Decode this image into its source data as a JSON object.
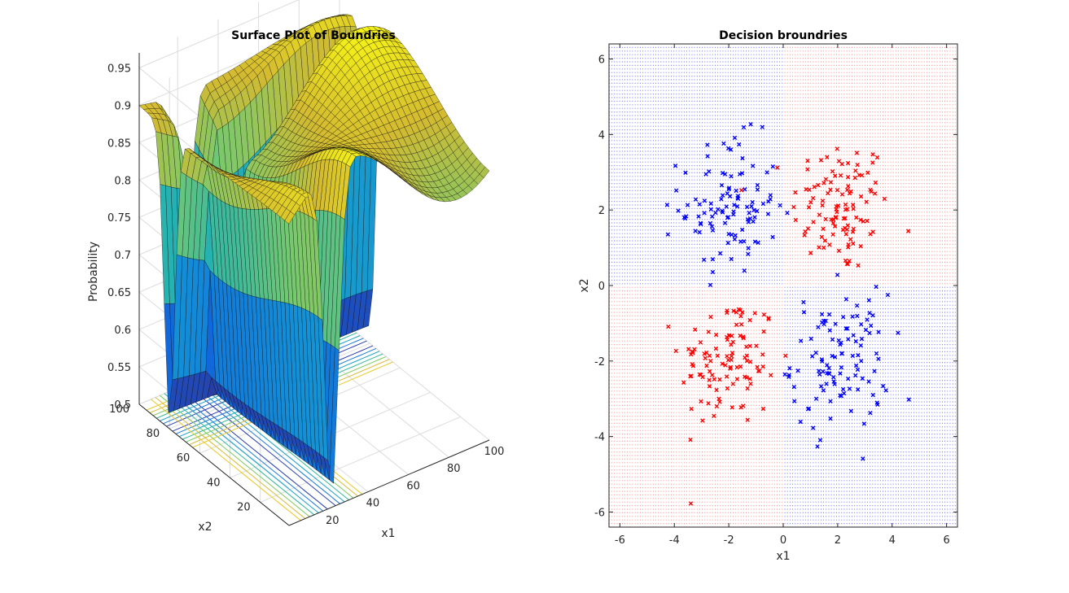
{
  "figure": {
    "background": "#ffffff"
  },
  "chart_data": [
    {
      "type": "surface",
      "title": "Surface Plot of Boundries",
      "xlabel": "x1",
      "ylabel": "x2",
      "zlabel": "Probability",
      "x_ticks": [
        "20",
        "40",
        "60",
        "80",
        "100"
      ],
      "y_ticks": [
        "20",
        "40",
        "60",
        "80",
        "100"
      ],
      "z_ticks": [
        "0.5",
        "0.55",
        "0.6",
        "0.65",
        "0.7",
        "0.75",
        "0.8",
        "0.85",
        "0.9",
        "0.95"
      ],
      "xlim": [
        1,
        100
      ],
      "ylim": [
        1,
        100
      ],
      "zlim": [
        0.5,
        0.97
      ],
      "colormap": "parula",
      "contours_on_floor": true,
      "grid": true
    },
    {
      "type": "scatter",
      "title": "Decision broundries",
      "xlabel": "x1",
      "ylabel": "x2",
      "x_ticks": [
        "-6",
        "-4",
        "-2",
        "0",
        "2",
        "4",
        "6"
      ],
      "y_ticks": [
        "-6",
        "-4",
        "-2",
        "0",
        "2",
        "4",
        "6"
      ],
      "xlim": [
        -6.4,
        6.4
      ],
      "ylim": [
        -6.4,
        6.4
      ],
      "background_grid_colors": {
        "class_1": "#0000ff",
        "class_2": "#ff0000"
      },
      "series": [
        {
          "color": "#ff0000",
          "marker": "x",
          "clusters": [
            {
              "cx": 2.1,
              "cy": 2.1,
              "spread": 0.9
            },
            {
              "cx": -2.0,
              "cy": -2.0,
              "spread": 0.9
            }
          ]
        },
        {
          "color": "#0000ff",
          "marker": "x",
          "clusters": [
            {
              "cx": -2.0,
              "cy": 2.1,
              "spread": 0.9
            },
            {
              "cx": 2.1,
              "cy": -2.0,
              "spread": 0.9
            }
          ]
        }
      ]
    }
  ]
}
